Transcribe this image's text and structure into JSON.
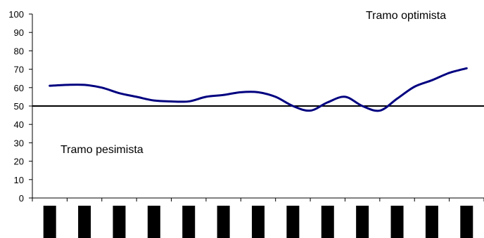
{
  "chart_data": {
    "type": "line",
    "title": "",
    "xlabel": "",
    "ylabel": "",
    "ylim": [
      0,
      100
    ],
    "y_ticks": [
      0,
      10,
      20,
      30,
      40,
      50,
      60,
      70,
      80,
      90,
      100
    ],
    "grid": false,
    "legend": "none",
    "category_count": 13,
    "x": [
      0,
      0.5,
      1,
      1.5,
      2,
      2.5,
      3,
      3.5,
      4,
      4.5,
      5,
      5.5,
      6,
      6.5,
      7,
      7.5,
      8,
      8.5,
      9,
      9.5,
      10,
      10.5,
      11,
      11.5,
      12
    ],
    "series": [
      {
        "color": "#000080",
        "values": [
          61,
          61.5,
          61.5,
          60,
          57,
          55,
          53,
          52.5,
          52.5,
          55,
          56,
          57.5,
          57.5,
          55,
          50,
          47.5,
          52,
          55,
          50,
          47.5,
          54,
          60.5,
          64,
          68,
          70.5
        ]
      }
    ],
    "reference_line": {
      "value": 50,
      "color": "#000000"
    },
    "annotations": [
      {
        "text": "Tramo optimista"
      },
      {
        "text": "Tramo pesimista"
      }
    ]
  }
}
